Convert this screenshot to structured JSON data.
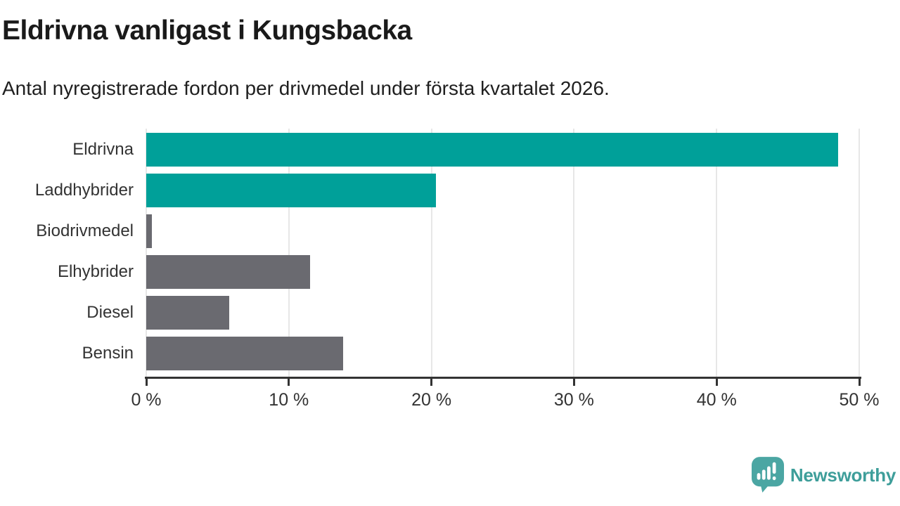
{
  "header": {
    "title": "Eldrivna vanligast i Kungsbacka",
    "subtitle": "Antal nyregistrerade fordon per drivmedel under första kvartalet 2026."
  },
  "chart_data": {
    "type": "bar",
    "orientation": "horizontal",
    "title": "Eldrivna vanligast i Kungsbacka",
    "subtitle": "Antal nyregistrerade fordon per drivmedel under första kvartalet 2026.",
    "categories": [
      "Eldrivna",
      "Laddhybrider",
      "Biodrivmedel",
      "Elhybrider",
      "Diesel",
      "Bensin"
    ],
    "values": [
      48.5,
      20.3,
      0.4,
      11.5,
      5.8,
      13.8
    ],
    "unit": "%",
    "bar_colors": [
      "#00A099",
      "#00A099",
      "#6A6A70",
      "#6A6A70",
      "#6A6A70",
      "#6A6A70"
    ],
    "highlight_color": "#00A099",
    "default_color": "#6A6A70",
    "xlim": [
      0,
      50
    ],
    "x_ticks": [
      0,
      10,
      20,
      30,
      40,
      50
    ],
    "x_tick_labels": [
      "0 %",
      "10 %",
      "20 %",
      "30 %",
      "40 %",
      "50 %"
    ],
    "grid": "vertical",
    "legend": "none"
  },
  "footer": {
    "brand": "Newsworthy",
    "brand_text_color": "#3E9E9A",
    "logo_mark_color": "#4BA6A3"
  }
}
